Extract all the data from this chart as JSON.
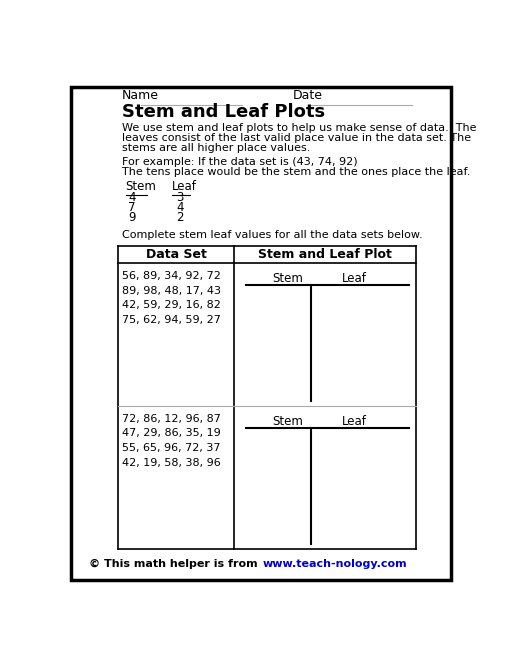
{
  "title": "Stem and Leaf Plots",
  "name_label": "Name",
  "date_label": "Date",
  "intro_text": [
    "We use stem and leaf plots to help us make sense of data.  The",
    "leaves consist of the last valid place value in the data set. The",
    "stems are all higher place values."
  ],
  "example_text": [
    "For example: If the data set is (43, 74, 92)",
    "The tens place would be the stem and the ones place the leaf."
  ],
  "example_table": {
    "header": [
      "Stem",
      "Leaf"
    ],
    "rows": [
      [
        "4",
        "3"
      ],
      [
        "7",
        "4"
      ],
      [
        "9",
        "2"
      ]
    ]
  },
  "complete_instruction": "Complete stem leaf values for all the data sets below.",
  "table_header": [
    "Data Set",
    "Stem and Leaf Plot"
  ],
  "dataset1": [
    "56, 89, 34, 92, 72",
    "89, 98, 48, 17, 43",
    "42, 59, 29, 16, 82",
    "75, 62, 94, 59, 27"
  ],
  "dataset2": [
    "72, 86, 12, 96, 87",
    "47, 29, 86, 35, 19",
    "55, 65, 96, 72, 37",
    "42, 19, 58, 38, 96"
  ],
  "footer_text": "© This math helper is from ",
  "footer_link": "www.teach-nology.com",
  "bg_color": "#ffffff",
  "border_color": "#000000",
  "text_color": "#000000",
  "link_color": "#0000cc",
  "grid_color": "#aaaaaa",
  "underline_color": "#aaaaaa"
}
